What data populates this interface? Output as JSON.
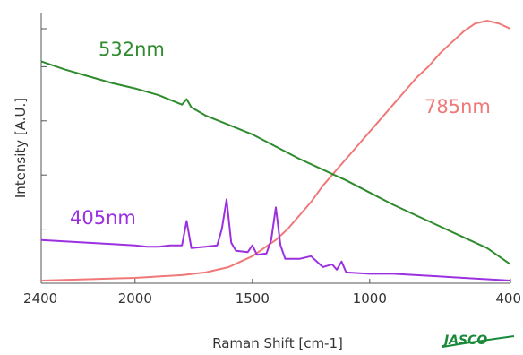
{
  "chart_data": {
    "type": "line",
    "title": "",
    "xlabel": "Raman Shift [cm-1]",
    "ylabel": "Intensity [A.U.]",
    "xlim": [
      2400,
      400
    ],
    "ylim": [
      0,
      100
    ],
    "x_ticks": [
      2400,
      2000,
      1500,
      1000,
      400
    ],
    "x_tick_labels": [
      "2400",
      "2000",
      "1500",
      "1000",
      "400"
    ],
    "y_tick_labels_shown": false,
    "grid": false,
    "legend": "inline labels",
    "logo": "JASCO",
    "colors": {
      "532nm": "#2e8b2e",
      "785nm": "#f07878",
      "405nm": "#9b30e0",
      "axis": "#555555",
      "logo": "#1a8a3a"
    },
    "series": [
      {
        "name": "532nm",
        "x": [
          2400,
          2300,
          2200,
          2100,
          2000,
          1900,
          1800,
          1780,
          1760,
          1700,
          1600,
          1500,
          1400,
          1300,
          1200,
          1100,
          1000,
          900,
          800,
          700,
          600,
          500,
          400
        ],
        "y": [
          82,
          79,
          76.5,
          74,
          72,
          69.5,
          66,
          68,
          65,
          62,
          58.5,
          55,
          50.5,
          46,
          42,
          38,
          33.5,
          29,
          25,
          21,
          17,
          13,
          7
        ]
      },
      {
        "name": "785nm",
        "x": [
          2400,
          2200,
          2000,
          1900,
          1800,
          1700,
          1650,
          1600,
          1550,
          1500,
          1450,
          1400,
          1350,
          1300,
          1250,
          1200,
          1150,
          1100,
          1050,
          1000,
          950,
          900,
          850,
          800,
          750,
          700,
          650,
          600,
          550,
          500,
          450,
          400
        ],
        "y": [
          1,
          1.5,
          2,
          2.5,
          3,
          4,
          5,
          6,
          8,
          10,
          13,
          16,
          20,
          25,
          30,
          36,
          41,
          46,
          51,
          56,
          61,
          66,
          71,
          76,
          80,
          85,
          89,
          93,
          96,
          97,
          96,
          94
        ]
      },
      {
        "name": "405nm",
        "x": [
          2400,
          2300,
          2200,
          2100,
          2000,
          1950,
          1900,
          1850,
          1800,
          1780,
          1760,
          1700,
          1650,
          1630,
          1610,
          1590,
          1570,
          1520,
          1500,
          1480,
          1440,
          1420,
          1400,
          1380,
          1360,
          1330,
          1300,
          1250,
          1200,
          1160,
          1140,
          1120,
          1100,
          1000,
          900,
          800,
          700,
          600,
          500,
          400
        ],
        "y": [
          16,
          15.5,
          15,
          14.5,
          14,
          13.5,
          13.5,
          14,
          14,
          23,
          13,
          13.5,
          14,
          20,
          31,
          15,
          12,
          11.5,
          14,
          10.5,
          11,
          16,
          28,
          14,
          9,
          9,
          9,
          10,
          6,
          7,
          5,
          8,
          4,
          3.5,
          3.5,
          3,
          2.5,
          2,
          1.5,
          1
        ]
      }
    ]
  }
}
